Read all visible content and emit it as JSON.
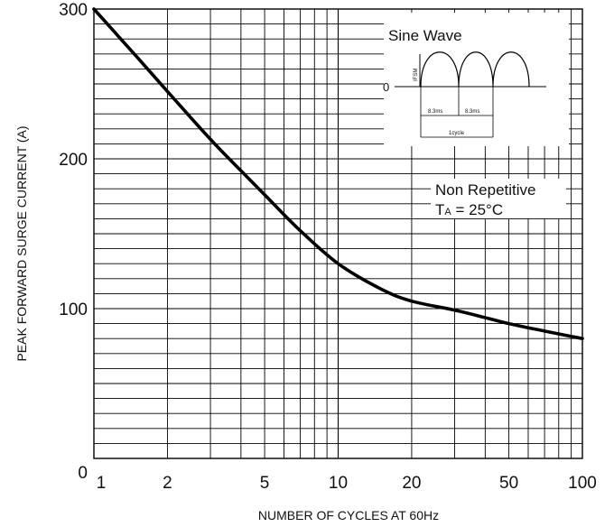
{
  "chart_data": {
    "type": "line",
    "title": "",
    "xlabel": "NUMBER OF CYCLES AT 60Hz",
    "ylabel": "PEAK FORWARD SURGE CURRENT (A)",
    "x_scale": "log",
    "xlim": [
      1,
      100
    ],
    "ylim": [
      0,
      300
    ],
    "x_ticks": [
      "1",
      "2",
      "5",
      "10",
      "20",
      "50",
      "100"
    ],
    "x_tick_values": [
      1,
      2,
      5,
      10,
      20,
      50,
      100
    ],
    "y_ticks": [
      "0",
      "100",
      "200",
      "300"
    ],
    "y_tick_values": [
      0,
      100,
      200,
      300
    ],
    "grid": true,
    "series": [
      {
        "name": "",
        "x": [
          1,
          1.5,
          2,
          3,
          4,
          5,
          7,
          10,
          15,
          20,
          30,
          40,
          50,
          70,
          100
        ],
        "y": [
          300,
          268,
          245,
          213,
          192,
          176,
          152,
          130,
          113,
          105,
          99,
          94,
          90,
          85,
          80
        ]
      }
    ],
    "annotations": {
      "inset_title": "Sine Wave",
      "inset_ylabel": "IFSM",
      "inset_zero": "0",
      "inset_half1": "8.3ms",
      "inset_half2": "8.3ms",
      "inset_cycle": "1cycle",
      "condition_line1": "Non Repetitive",
      "condition_ta_main": "T",
      "condition_ta_sub": "A",
      "condition_ta_value": " = 25°C"
    }
  }
}
